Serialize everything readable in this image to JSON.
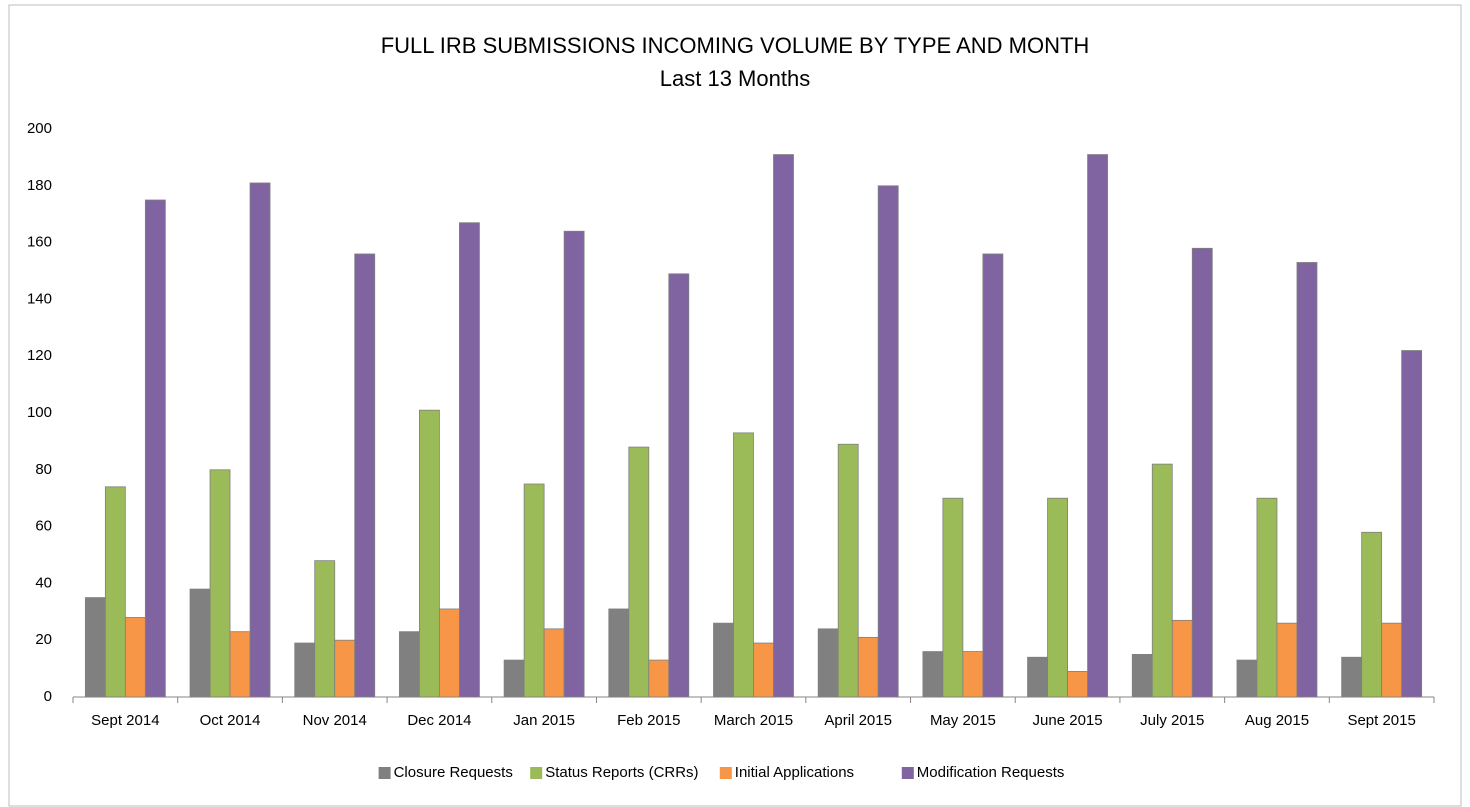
{
  "chart_data": {
    "type": "bar",
    "title": "FULL IRB SUBMISSIONS INCOMING VOLUME BY TYPE AND MONTH",
    "subtitle": "Last 13 Months",
    "categories": [
      "Sept 2014",
      "Oct 2014",
      "Nov 2014",
      "Dec 2014",
      "Jan 2015",
      "Feb 2015",
      "March 2015",
      "April 2015",
      "May 2015",
      "June 2015",
      "July 2015",
      "Aug 2015",
      "Sept 2015"
    ],
    "series": [
      {
        "name": "Closure Requests",
        "color": "#808080",
        "values": [
          35,
          38,
          19,
          23,
          13,
          31,
          26,
          24,
          16,
          14,
          15,
          13,
          14
        ]
      },
      {
        "name": "Status Reports (CRRs)",
        "color": "#9bbb59",
        "values": [
          74,
          80,
          48,
          101,
          75,
          88,
          93,
          89,
          70,
          70,
          82,
          70,
          58
        ]
      },
      {
        "name": "Initial Applications",
        "color": "#f79646",
        "values": [
          28,
          23,
          20,
          31,
          24,
          13,
          19,
          21,
          16,
          9,
          27,
          26,
          26
        ]
      },
      {
        "name": "Modification Requests",
        "color": "#8064a2",
        "values": [
          175,
          181,
          156,
          167,
          164,
          149,
          191,
          180,
          156,
          191,
          158,
          153,
          122
        ]
      }
    ],
    "ylim": [
      0,
      200
    ],
    "yticks": [
      0,
      20,
      40,
      60,
      80,
      100,
      120,
      140,
      160,
      180,
      200
    ],
    "grid": false,
    "legend": "bottom"
  }
}
